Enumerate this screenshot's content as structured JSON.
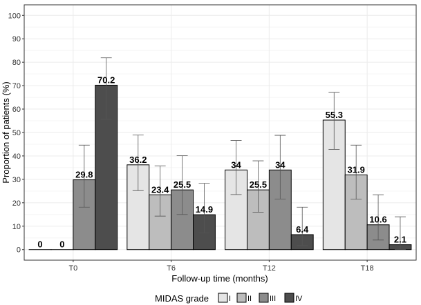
{
  "chart_data": {
    "type": "bar",
    "title": "",
    "xlabel": "Follow-up time (months)",
    "ylabel": "Proportion of patients (%)",
    "ylim": [
      0,
      100
    ],
    "yticks": [
      0,
      10,
      20,
      30,
      40,
      50,
      60,
      70,
      80,
      90,
      100
    ],
    "grid": true,
    "categories": [
      "T0",
      "T6",
      "T12",
      "T18"
    ],
    "series": [
      {
        "name": "I",
        "color": "#e5e5e5",
        "values": [
          0,
          36.2,
          34,
          55.3
        ],
        "labels": [
          "0",
          "36.2",
          "34",
          "55.3"
        ],
        "err_low": [
          0,
          25.2,
          23.5,
          42.8
        ],
        "err_high": [
          0,
          48.9,
          46.6,
          67.1
        ]
      },
      {
        "name": "II",
        "color": "#bdbdbd",
        "values": [
          0,
          23.4,
          25.5,
          31.9
        ],
        "labels": [
          "0",
          "23.4",
          "25.5",
          "31.9"
        ],
        "err_low": [
          0,
          14.3,
          16.0,
          21.5
        ],
        "err_high": [
          0,
          35.7,
          37.9,
          44.6
        ]
      },
      {
        "name": "III",
        "color": "#8c8c8c",
        "values": [
          29.8,
          25.5,
          34,
          10.6
        ],
        "labels": [
          "29.8",
          "25.5",
          "34",
          "10.6"
        ],
        "err_low": [
          18.1,
          15.0,
          21.6,
          4.1
        ],
        "err_high": [
          44.6,
          40.1,
          48.8,
          23.4
        ]
      },
      {
        "name": "IV",
        "color": "#4d4d4d",
        "values": [
          70.2,
          14.9,
          6.4,
          2.1
        ],
        "labels": [
          "70.2",
          "14.9",
          "6.4",
          "2.1"
        ],
        "err_low": [
          55.6,
          7.1,
          1.7,
          0.1
        ],
        "err_high": [
          81.9,
          28.3,
          18.1,
          14.0
        ]
      }
    ],
    "legend": {
      "title": "MIDAS grade",
      "position": "bottom"
    }
  }
}
